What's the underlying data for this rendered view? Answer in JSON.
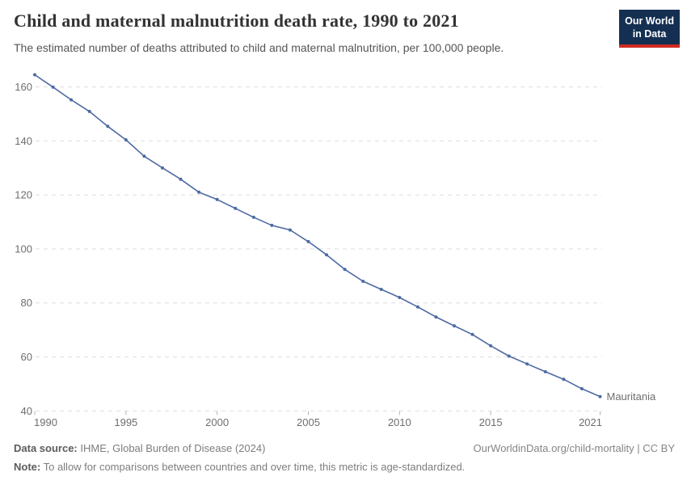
{
  "header": {
    "title": "Child and maternal malnutrition death rate, 1990 to 2021",
    "subtitle": "The estimated number of deaths attributed to child and maternal malnutrition, per 100,000 people.",
    "logo": {
      "line1": "Our World",
      "line2": "in Data"
    }
  },
  "chart_data": {
    "type": "line",
    "title": "Child and maternal malnutrition death rate, 1990 to 2021",
    "xlabel": "",
    "ylabel": "deaths per 100,000 people",
    "x": [
      1990,
      1991,
      1992,
      1993,
      1994,
      1995,
      1996,
      1997,
      1998,
      1999,
      2000,
      2001,
      2002,
      2003,
      2004,
      2005,
      2006,
      2007,
      2008,
      2009,
      2010,
      2011,
      2012,
      2013,
      2014,
      2015,
      2016,
      2017,
      2018,
      2019,
      2020,
      2021
    ],
    "series": [
      {
        "name": "Mauritania",
        "color": "#4d6aa4",
        "values": [
          164.5,
          159.9,
          155.2,
          150.9,
          145.4,
          140.4,
          134.3,
          130.0,
          125.8,
          121.0,
          118.3,
          115.0,
          111.7,
          108.7,
          107.0,
          102.7,
          97.8,
          92.4,
          88.0,
          85.0,
          82.0,
          78.5,
          74.8,
          71.5,
          68.3,
          64.1,
          60.3,
          57.4,
          54.5,
          51.7,
          48.2,
          45.3
        ]
      }
    ],
    "xlim": [
      1990,
      2021
    ],
    "ylim": [
      40,
      165
    ],
    "yticks": [
      40,
      60,
      80,
      100,
      120,
      140,
      160
    ],
    "xticks": [
      1990,
      1995,
      2000,
      2005,
      2010,
      2015,
      2021
    ],
    "grid": "horizontal-dashed",
    "legend_position": "end-of-line-label"
  },
  "footer": {
    "source_label": "Data source:",
    "source_text": " IHME, Global Burden of Disease (2024)",
    "link_text": "OurWorldinData.org/child-mortality | CC BY",
    "note_label": "Note:",
    "note_text": " To allow for comparisons between countries and over time, this metric is age-standardized."
  },
  "colors": {
    "line": "#4d6aa4",
    "grid": "#dedede",
    "tick": "#b5b5b5",
    "axis_text": "#6e6e6e",
    "logo_bg": "#142f52",
    "logo_red": "#cf2a20"
  }
}
